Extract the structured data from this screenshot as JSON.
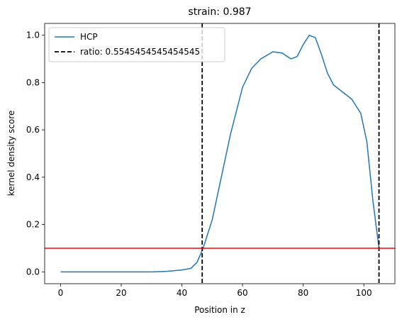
{
  "chart_data": {
    "type": "line",
    "title": "strain: 0.987",
    "xlabel": "Position in z",
    "ylabel": "kernel density score",
    "xlim": [
      -5.25,
      110.25
    ],
    "ylim": [
      -0.05,
      1.05
    ],
    "xticks": [
      0,
      20,
      40,
      60,
      80,
      100
    ],
    "yticks": [
      {
        "value": 0,
        "label": "0.0"
      },
      {
        "value": 0.2,
        "label": "0.2"
      },
      {
        "value": 0.4,
        "label": "0.4"
      },
      {
        "value": 0.6,
        "label": "0.6"
      },
      {
        "value": 0.8,
        "label": "0.8"
      },
      {
        "value": 1,
        "label": "1.0"
      }
    ],
    "legend": "upper left",
    "series": [
      {
        "name": "HCP",
        "color": "#1f77b4",
        "x": [
          0,
          10,
          20,
          30,
          35,
          40,
          43,
          45,
          47,
          50,
          53,
          56,
          60,
          63,
          66,
          70,
          73,
          76,
          78,
          80,
          82,
          84,
          86,
          88,
          90,
          93,
          96,
          99,
          101,
          103,
          105
        ],
        "values": [
          0,
          0,
          0,
          0,
          0.002,
          0.008,
          0.015,
          0.04,
          0.1,
          0.22,
          0.4,
          0.58,
          0.78,
          0.86,
          0.9,
          0.93,
          0.925,
          0.9,
          0.91,
          0.96,
          1.0,
          0.99,
          0.92,
          0.84,
          0.79,
          0.76,
          0.73,
          0.67,
          0.55,
          0.3,
          0.1
        ]
      }
    ],
    "vlines": {
      "name": "ratio: 0.5545454545454545",
      "color": "#000000",
      "x": [
        46.7,
        105
      ]
    },
    "hline": {
      "y": 0.1,
      "color": "#ff0000"
    }
  }
}
